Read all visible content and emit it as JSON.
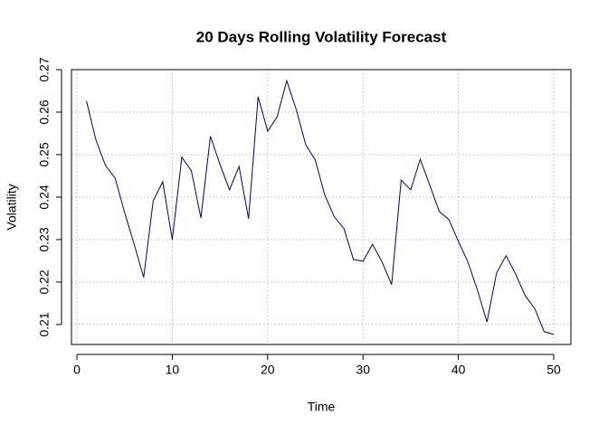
{
  "chart_data": {
    "type": "line",
    "title": "20 Days Rolling Volatility Forecast",
    "x_label": "Time",
    "y_label": "Volatility",
    "x": [
      1,
      2,
      3,
      4,
      5,
      6,
      7,
      8,
      9,
      10,
      11,
      12,
      13,
      14,
      15,
      16,
      17,
      18,
      19,
      20,
      21,
      22,
      23,
      24,
      25,
      26,
      27,
      28,
      29,
      30,
      31,
      32,
      33,
      34,
      35,
      36,
      37,
      38,
      39,
      40,
      41,
      42,
      43,
      44,
      45,
      46,
      47,
      48,
      49,
      50
    ],
    "series": [
      {
        "name": "Volatility",
        "color": "#00008b",
        "values": [
          0.2626,
          0.2534,
          0.2474,
          0.2445,
          0.2364,
          0.2289,
          0.2211,
          0.2391,
          0.2436,
          0.23,
          0.2494,
          0.2462,
          0.2351,
          0.2543,
          0.2477,
          0.2417,
          0.2472,
          0.2349,
          0.2636,
          0.2555,
          0.2589,
          0.2674,
          0.2606,
          0.2523,
          0.2487,
          0.2404,
          0.2353,
          0.2326,
          0.2253,
          0.2249,
          0.2289,
          0.2247,
          0.2194,
          0.244,
          0.2417,
          0.2489,
          0.2428,
          0.2366,
          0.2347,
          0.2296,
          0.2247,
          0.2181,
          0.2106,
          0.2221,
          0.2262,
          0.2219,
          0.2168,
          0.2138,
          0.2083,
          0.2077
        ]
      }
    ],
    "xlim": [
      -0.57,
      51.8
    ],
    "ylim": [
      0.2053,
      0.27
    ],
    "xticks": [
      0,
      10,
      20,
      30,
      40,
      50
    ],
    "yticks": [
      0.21,
      0.22,
      0.23,
      0.24,
      0.25,
      0.26,
      0.27
    ],
    "grid": true
  }
}
